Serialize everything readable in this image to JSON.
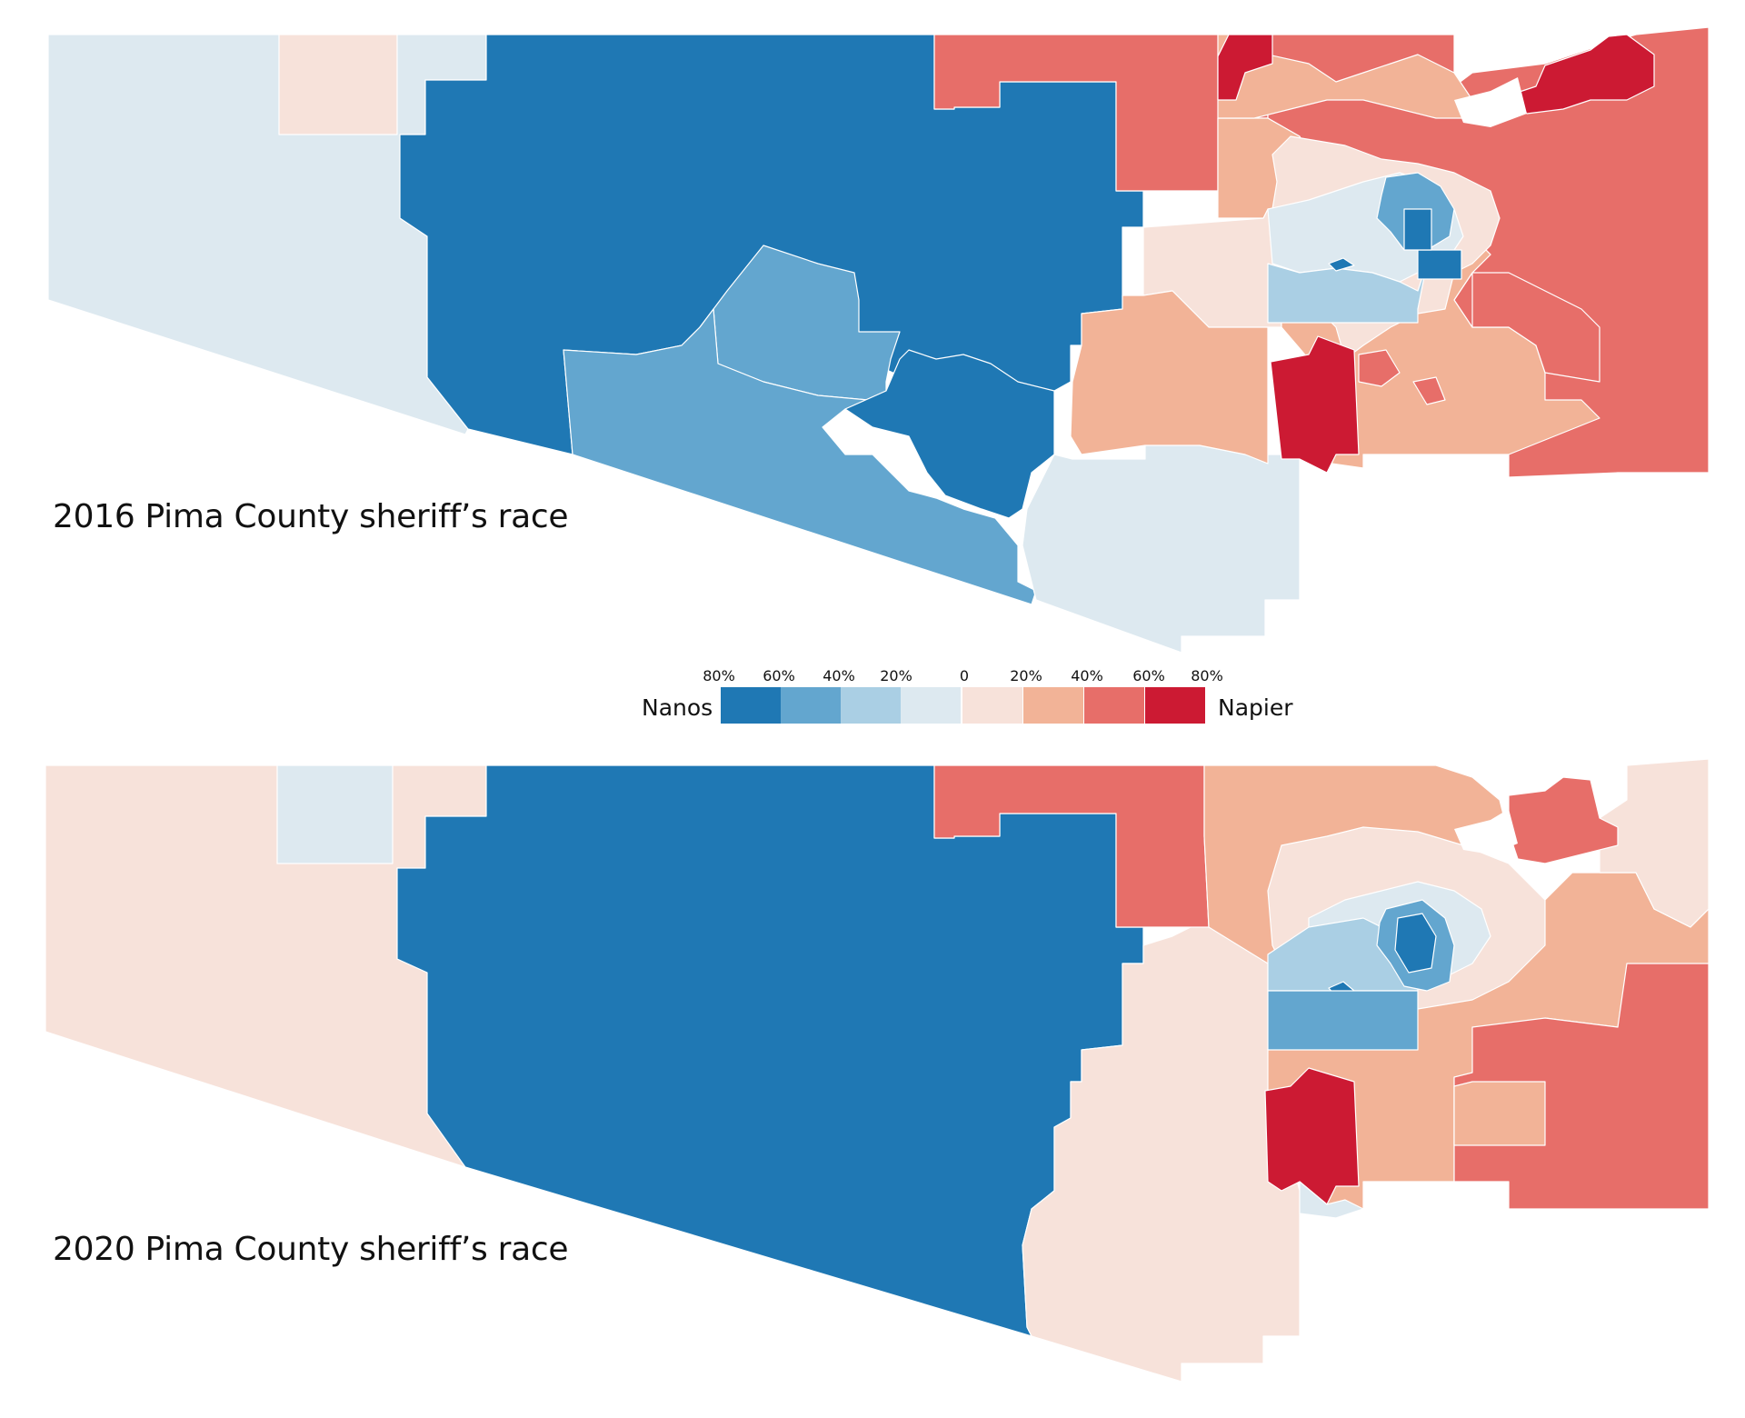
{
  "maps": [
    {
      "title": "2016 Pima County sheriff’s race"
    },
    {
      "title": "2020 Pima County sheriff’s race"
    }
  ],
  "legend": {
    "left_label": "Nanos",
    "right_label": "Napier",
    "ticks": [
      "80%",
      "60%",
      "40%",
      "20%",
      "0",
      "20%",
      "40%",
      "60%",
      "80%"
    ],
    "colors": [
      "#1f78b4",
      "#63a6cf",
      "#aacfe4",
      "#dde9f0",
      "#f7e2da",
      "#f2b397",
      "#e76e69",
      "#cc1a33"
    ]
  },
  "palette": {
    "nanos_80": "#1f78b4",
    "nanos_60": "#63a6cf",
    "nanos_40": "#aacfe4",
    "nanos_20": "#dde9f0",
    "napier_20": "#f7e2da",
    "napier_40": "#f2b397",
    "napier_60": "#e76e69",
    "napier_80": "#cc1a33"
  }
}
